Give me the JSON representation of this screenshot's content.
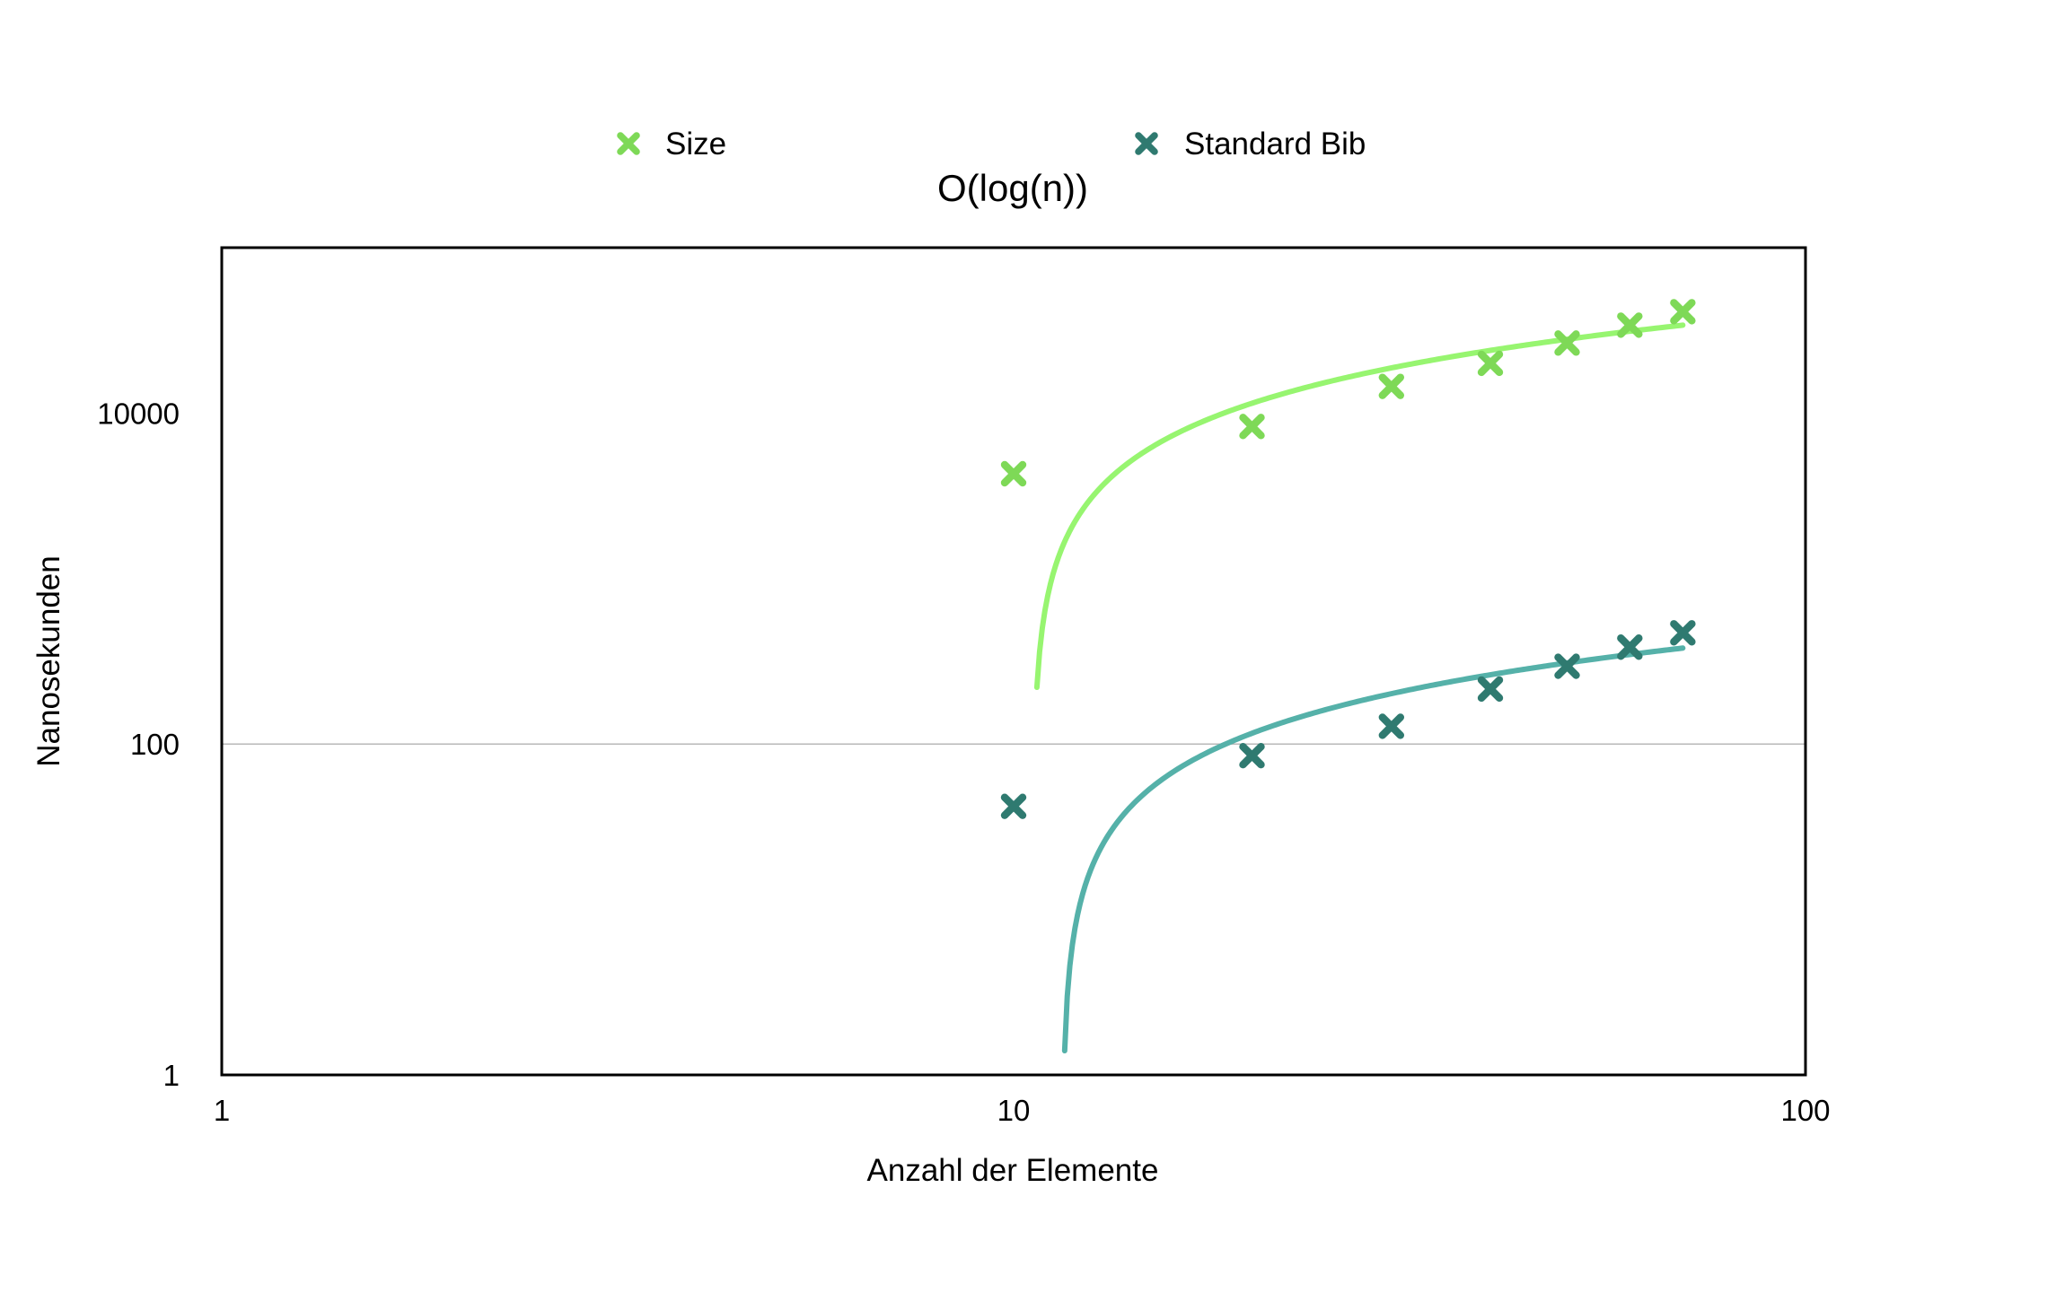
{
  "chart_data": {
    "type": "scatter",
    "title": "O(log(n))",
    "xlabel": "Anzahl der Elemente",
    "ylabel": "Nanosekunden",
    "x_scale": "log",
    "y_scale": "log",
    "xlim": [
      1,
      100
    ],
    "ylim": [
      1,
      100000
    ],
    "x_ticks": [
      "1",
      "10",
      "100"
    ],
    "y_ticks": [
      "1",
      "100",
      "10000"
    ],
    "grid": "horizontal line at 100 only",
    "legend_position": "top",
    "series": [
      {
        "name": "Size",
        "color": "#7ed957",
        "trend_color": "#97f570",
        "marker": "x",
        "x": [
          10,
          20,
          30,
          40,
          50,
          60,
          70
        ],
        "y": [
          4300,
          8300,
          14500,
          20000,
          26500,
          34000,
          41000
        ],
        "trendline": {
          "type": "logarithmic",
          "x_range": [
            10.7,
            70
          ],
          "y_range": [
            220,
            34000
          ]
        }
      },
      {
        "name": "Standard Bib",
        "color": "#2f7a70",
        "trend_color": "#55b1a9",
        "marker": "x",
        "x": [
          10,
          20,
          30,
          40,
          50,
          60,
          70
        ],
        "y": [
          42,
          85,
          128,
          215,
          295,
          385,
          470
        ],
        "trendline": {
          "type": "logarithmic",
          "x_range": [
            11.6,
            70
          ],
          "y_range": [
            1.4,
            380
          ]
        }
      }
    ]
  }
}
